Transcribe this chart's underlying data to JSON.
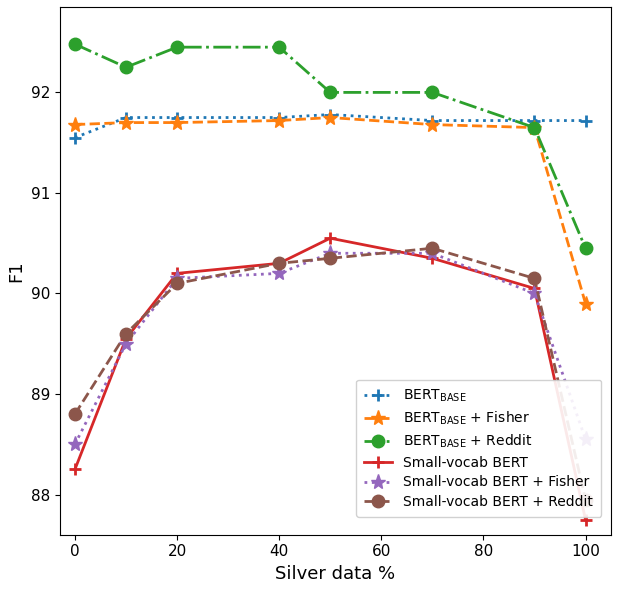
{
  "x": [
    0,
    10,
    20,
    40,
    50,
    70,
    90,
    100
  ],
  "series": {
    "bert_base": {
      "label": "BERT$_{\\rm BASE}$",
      "y": [
        91.55,
        91.75,
        91.75,
        91.75,
        91.78,
        91.72,
        91.72,
        91.72
      ],
      "color": "#1f77b4",
      "linestyle": "dotted",
      "marker": "+",
      "markersize": 8,
      "markeredgewidth": 2,
      "linewidth": 2
    },
    "bert_base_fisher": {
      "label": "BERT$_{\\rm BASE}$ + Fisher",
      "y": [
        91.68,
        91.7,
        91.7,
        91.72,
        91.75,
        91.68,
        91.65,
        89.9
      ],
      "color": "#ff7f0e",
      "linestyle": "dashed",
      "marker": "*",
      "markersize": 11,
      "markeredgewidth": 1,
      "linewidth": 2
    },
    "bert_base_reddit": {
      "label": "BERT$_{\\rm BASE}$ + Reddit",
      "y": [
        92.48,
        92.25,
        92.45,
        92.45,
        92.0,
        92.0,
        91.65,
        90.45
      ],
      "color": "#2ca02c",
      "linestyle": "dashdot",
      "marker": "o",
      "markersize": 9,
      "markeredgewidth": 1,
      "linewidth": 2
    },
    "small_vocab_bert": {
      "label": "Small-vocab BERT",
      "y": [
        88.25,
        89.55,
        90.2,
        90.3,
        90.55,
        90.35,
        90.05,
        87.75
      ],
      "color": "#d62728",
      "linestyle": "solid",
      "marker": "+",
      "markersize": 8,
      "markeredgewidth": 2,
      "linewidth": 2
    },
    "small_vocab_bert_fisher": {
      "label": "Small-vocab BERT + Fisher",
      "y": [
        88.5,
        89.5,
        90.15,
        90.2,
        90.4,
        90.4,
        90.0,
        88.55
      ],
      "color": "#9467bd",
      "linestyle": "dotted",
      "marker": "*",
      "markersize": 11,
      "markeredgewidth": 1,
      "linewidth": 2
    },
    "small_vocab_bert_reddit": {
      "label": "Small-vocab BERT + Reddit",
      "y": [
        88.8,
        89.6,
        90.1,
        90.3,
        90.35,
        90.45,
        90.15,
        87.95
      ],
      "color": "#8c564b",
      "linestyle": "dashed",
      "marker": "o",
      "markersize": 9,
      "markeredgewidth": 1,
      "linewidth": 2
    }
  },
  "xlabel": "Silver data %",
  "ylabel": "F1",
  "ylim": [
    87.6,
    92.85
  ],
  "xlim": [
    -3,
    105
  ],
  "xticks": [
    0,
    20,
    40,
    60,
    80,
    100
  ],
  "yticks": [
    88,
    89,
    90,
    91,
    92
  ],
  "figsize": [
    6.18,
    5.9
  ],
  "dpi": 100
}
